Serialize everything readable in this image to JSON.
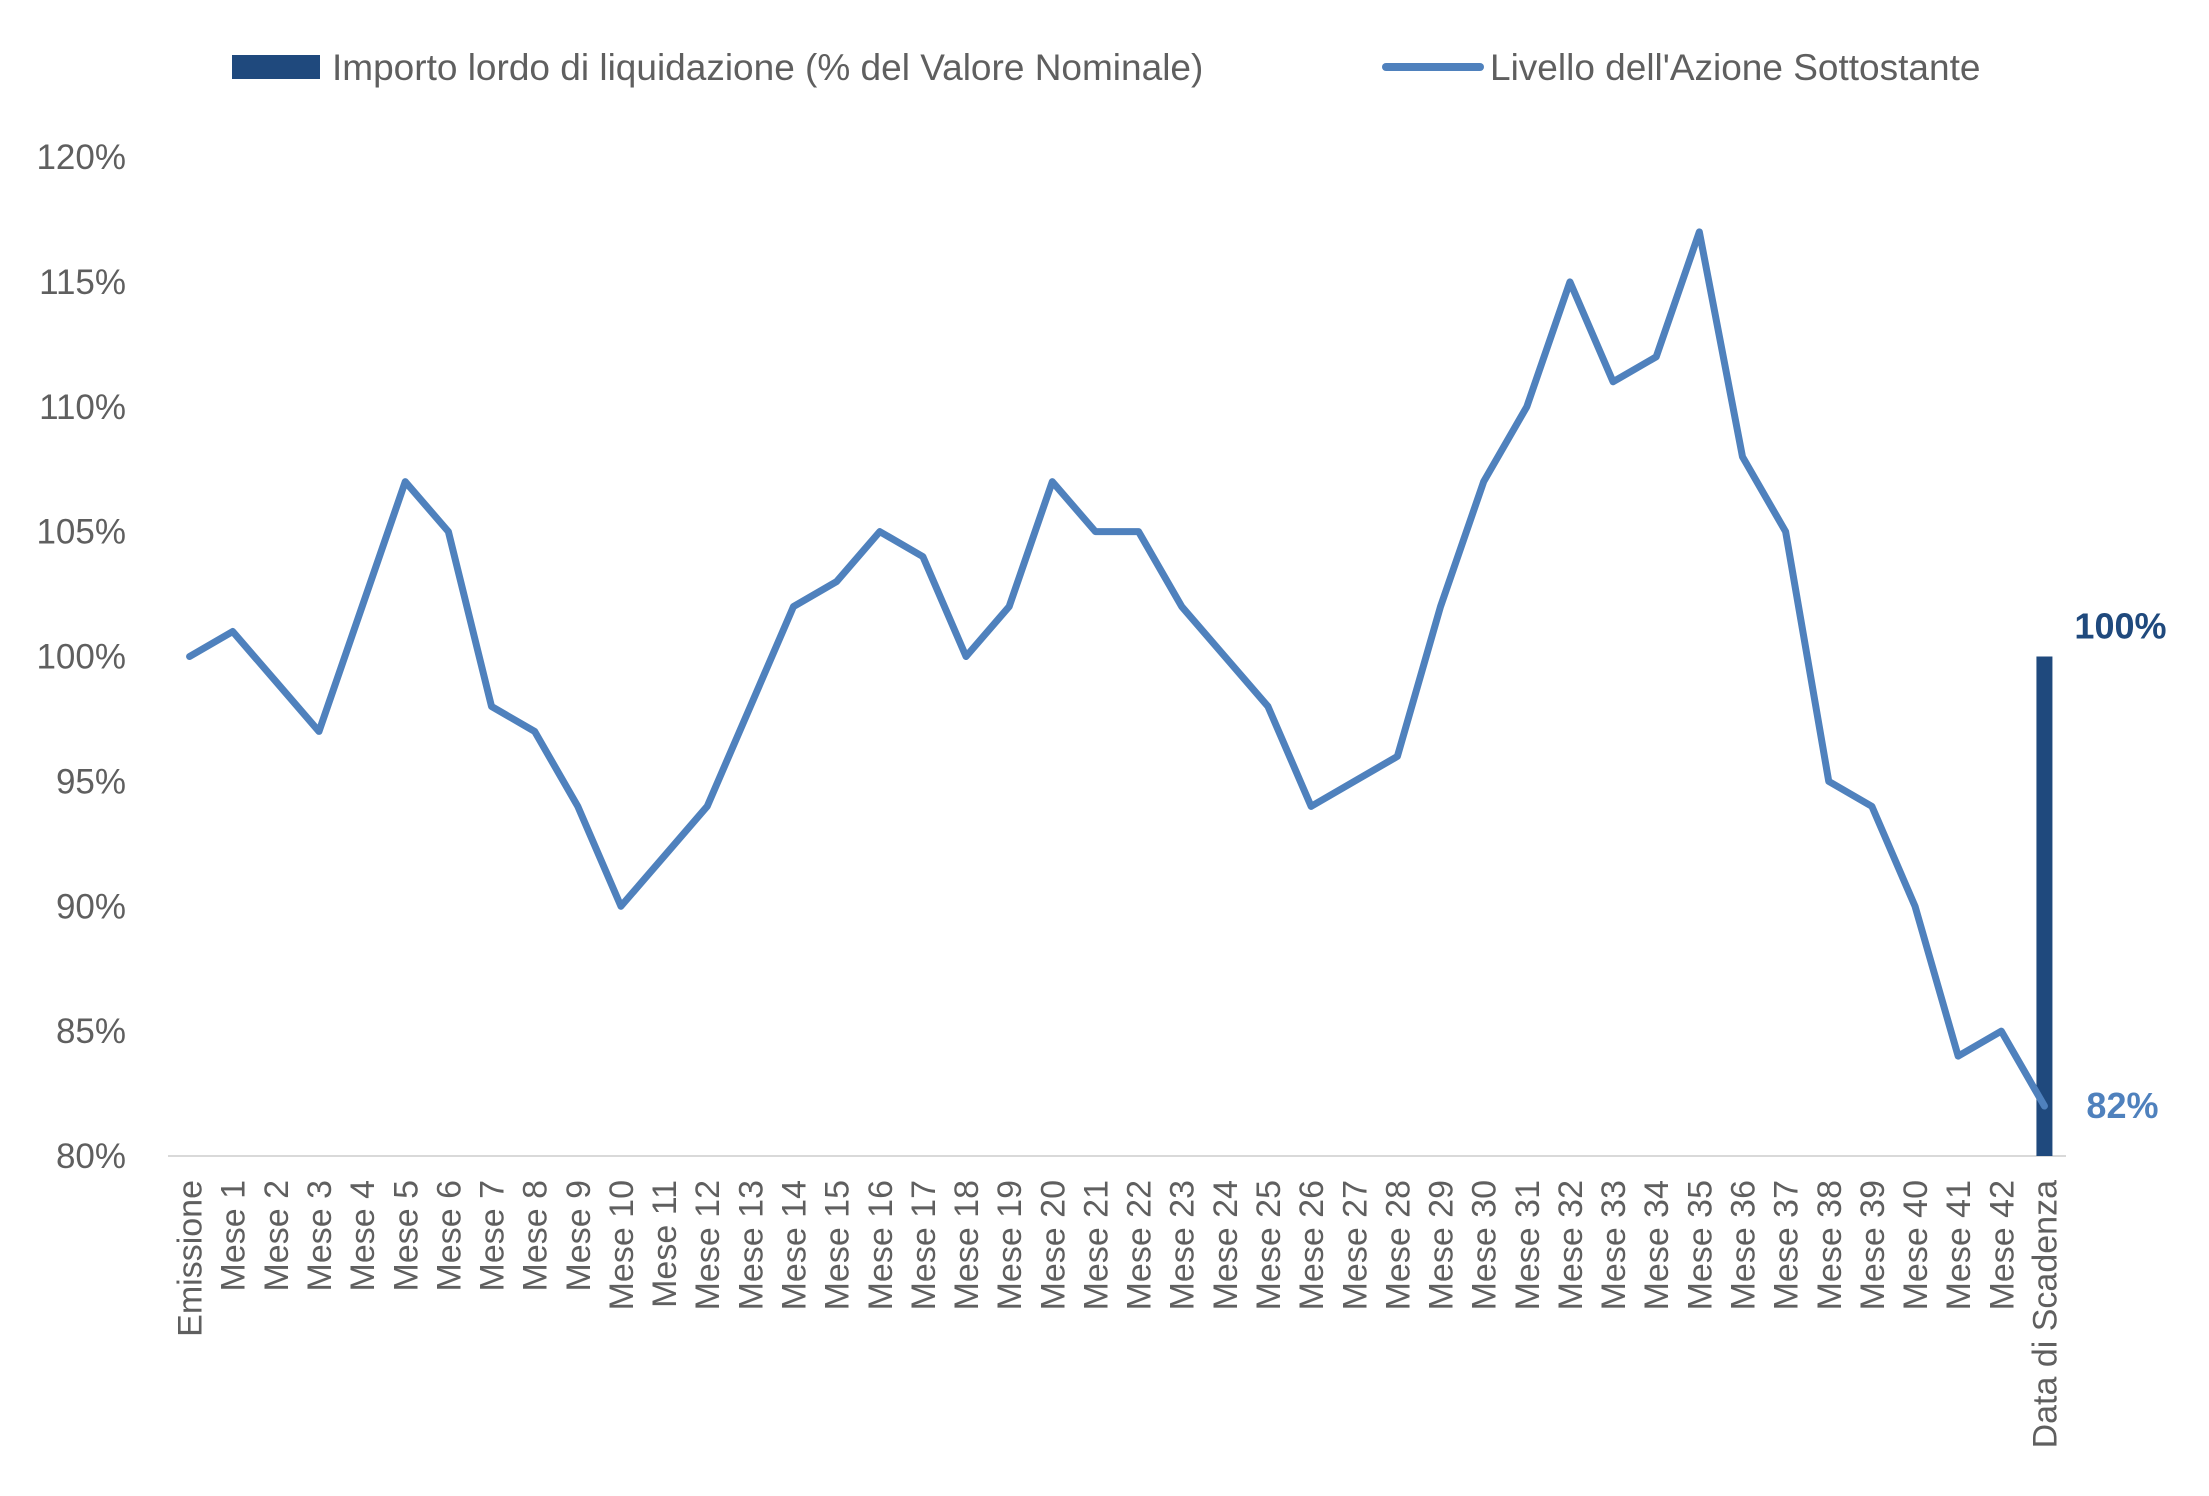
{
  "chart_data": {
    "type": "line",
    "title": "",
    "xlabel": "",
    "ylabel": "",
    "ylim": [
      80,
      120
    ],
    "y_tick_step": 5,
    "y_unit": "%",
    "y_ticks": [
      "80%",
      "85%",
      "90%",
      "95%",
      "100%",
      "105%",
      "110%",
      "115%",
      "120%"
    ],
    "grid": false,
    "legend_position": "top",
    "categories": [
      "Emissione",
      "Mese 1",
      "Mese 2",
      "Mese 3",
      "Mese 4",
      "Mese 5",
      "Mese 6",
      "Mese 7",
      "Mese 8",
      "Mese 9",
      "Mese 10",
      "Mese 11",
      "Mese 12",
      "Mese 13",
      "Mese 14",
      "Mese 15",
      "Mese 16",
      "Mese 17",
      "Mese 18",
      "Mese 19",
      "Mese 20",
      "Mese 21",
      "Mese 22",
      "Mese 23",
      "Mese 24",
      "Mese 25",
      "Mese 26",
      "Mese 27",
      "Mese 28",
      "Mese 29",
      "Mese 30",
      "Mese 31",
      "Mese 32",
      "Mese 33",
      "Mese 34",
      "Mese 35",
      "Mese 36",
      "Mese 37",
      "Mese 38",
      "Mese 39",
      "Mese 40",
      "Mese 41",
      "Mese 42",
      "Data di Scadenza"
    ],
    "series": [
      {
        "name": "Importo lordo di liquidazione (% del Valore Nominale)",
        "type": "bar",
        "color": "#1f497d",
        "values": [
          null,
          null,
          null,
          null,
          null,
          null,
          null,
          null,
          null,
          null,
          null,
          null,
          null,
          null,
          null,
          null,
          null,
          null,
          null,
          null,
          null,
          null,
          null,
          null,
          null,
          null,
          null,
          null,
          null,
          null,
          null,
          null,
          null,
          null,
          null,
          null,
          null,
          null,
          null,
          null,
          null,
          null,
          null,
          100
        ],
        "data_label": "100%"
      },
      {
        "name": "Livello dell'Azione Sottostante",
        "type": "line",
        "color": "#4f81bd",
        "values": [
          100,
          101,
          99,
          97,
          102,
          107,
          105,
          98,
          97,
          94,
          90,
          92,
          94,
          98,
          102,
          103,
          105,
          104,
          100,
          102,
          107,
          105,
          105,
          102,
          100,
          98,
          94,
          95,
          96,
          102,
          107,
          110,
          115,
          111,
          112,
          117,
          108,
          105,
          95,
          94,
          90,
          84,
          85,
          82
        ],
        "data_label": "82%"
      }
    ]
  }
}
